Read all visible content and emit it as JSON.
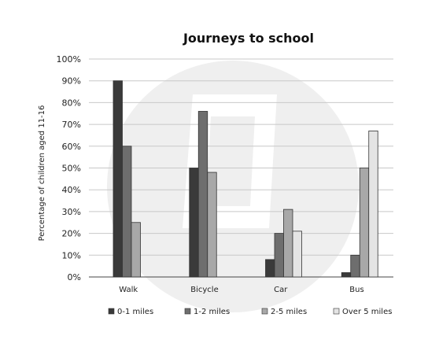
{
  "chart_data": {
    "type": "bar",
    "title": "Journeys to school",
    "ylabel": "Percentage of children aged 11-16",
    "xlabel": "",
    "ylim": [
      0,
      100
    ],
    "yticks": [
      0,
      10,
      20,
      30,
      40,
      50,
      60,
      70,
      80,
      90,
      100
    ],
    "ytick_labels": [
      "0%",
      "10%",
      "20%",
      "30%",
      "40%",
      "50%",
      "60%",
      "70%",
      "80%",
      "90%",
      "100%"
    ],
    "grid": true,
    "legend_position": "bottom",
    "categories": [
      "Walk",
      "Bicycle",
      "Car",
      "Bus"
    ],
    "series": [
      {
        "name": "0-1 miles",
        "color": "#3a3a3a",
        "values": [
          90,
          50,
          8,
          2
        ]
      },
      {
        "name": "1-2 miles",
        "color": "#6e6e6e",
        "values": [
          60,
          76,
          20,
          10
        ]
      },
      {
        "name": "2-5 miles",
        "color": "#a8a8a8",
        "values": [
          25,
          48,
          31,
          50
        ]
      },
      {
        "name": "Over 5 miles",
        "color": "#e4e4e4",
        "values": [
          0,
          0,
          21,
          67
        ]
      }
    ]
  }
}
